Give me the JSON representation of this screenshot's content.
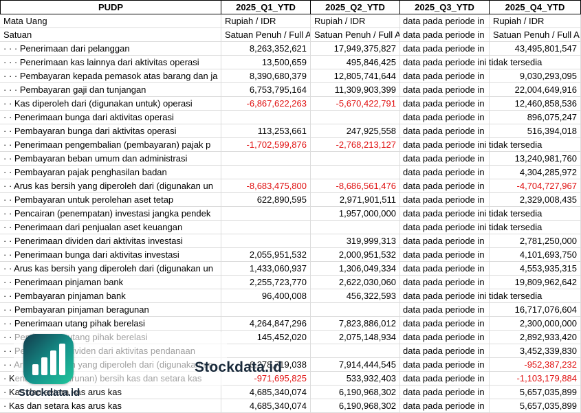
{
  "table": {
    "corner_label": "PUDP",
    "period_headers": [
      "2025_Q1_YTD",
      "2025_Q2_YTD",
      "2025_Q3_YTD",
      "2025_Q4_YTD"
    ],
    "rows": [
      {
        "meta": true,
        "label": "Mata Uang",
        "q1": "Rupiah / IDR",
        "q2": "Rupiah / IDR",
        "q3": "data pada periode in",
        "q4": "Rupiah / IDR"
      },
      {
        "meta": true,
        "label": "Satuan",
        "q1": "Satuan Penuh / Full A",
        "q2": "Satuan Penuh / Full A",
        "q3": "data pada periode in",
        "q4": "Satuan Penuh / Full A"
      },
      {
        "label": "· · · Penerimaan dari pelanggan",
        "q1": "8,263,352,621",
        "q2": "17,949,375,827",
        "q3": "data pada periode in",
        "q4": "43,495,801,547"
      },
      {
        "label": "· · · Penerimaan kas lainnya dari aktivitas operasi",
        "q1": "13,500,659",
        "q2": "495,846,425",
        "q3": "data pada periode ini tidak tersedia",
        "q4": ""
      },
      {
        "label": "· · · Pembayaran kepada pemasok atas barang dan ja",
        "q1": "8,390,680,379",
        "q2": "12,805,741,644",
        "q3": "data pada periode in",
        "q4": "9,030,293,095"
      },
      {
        "label": "· · · Pembayaran gaji dan tunjangan",
        "q1": "6,753,795,164",
        "q2": "11,309,903,399",
        "q3": "data pada periode in",
        "q4": "22,004,649,916"
      },
      {
        "label": "· · Kas diperoleh dari (digunakan untuk) operasi",
        "q1": "-6,867,622,263",
        "q2": "-5,670,422,791",
        "q3": "data pada periode in",
        "q4": "12,460,858,536"
      },
      {
        "label": "· · Penerimaan bunga dari aktivitas operasi",
        "q1": "",
        "q2": "",
        "q3": "data pada periode in",
        "q4": "896,075,247"
      },
      {
        "label": "· · Pembayaran bunga dari aktivitas operasi",
        "q1": "113,253,661",
        "q2": "247,925,558",
        "q3": "data pada periode in",
        "q4": "516,394,018"
      },
      {
        "label": "· · Penerimaan pengembalian (pembayaran) pajak p",
        "q1": "-1,702,599,876",
        "q2": "-2,768,213,127",
        "q3": "data pada periode ini tidak tersedia",
        "q4": ""
      },
      {
        "label": "· · Pembayaran beban umum dan administrasi",
        "q1": "",
        "q2": "",
        "q3": "data pada periode in",
        "q4": "13,240,981,760"
      },
      {
        "label": "· · Pembayaran pajak penghasilan badan",
        "q1": "",
        "q2": "",
        "q3": "data pada periode in",
        "q4": "4,304,285,972"
      },
      {
        "label": "· · Arus kas bersih yang diperoleh dari (digunakan un",
        "q1": "-8,683,475,800",
        "q2": "-8,686,561,476",
        "q3": "data pada periode in",
        "q4": "-4,704,727,967"
      },
      {
        "label": "· · Pembayaran untuk perolehan aset tetap",
        "q1": "622,890,595",
        "q2": "2,971,901,511",
        "q3": "data pada periode in",
        "q4": "2,329,008,435"
      },
      {
        "label": "· · Pencairan (penempatan) investasi jangka pendek",
        "q1": "",
        "q2": "1,957,000,000",
        "q3": "data pada periode ini tidak tersedia",
        "q4": ""
      },
      {
        "label": "· · Penerimaan dari penjualan aset keuangan",
        "q1": "",
        "q2": "",
        "q3": "data pada periode ini tidak tersedia",
        "q4": ""
      },
      {
        "label": "· · Penerimaan dividen dari aktivitas investasi",
        "q1": "",
        "q2": "319,999,313",
        "q3": "data pada periode in",
        "q4": "2,781,250,000"
      },
      {
        "label": "· · Penerimaan bunga dari aktivitas investasi",
        "q1": "2,055,951,532",
        "q2": "2,000,951,532",
        "q3": "data pada periode in",
        "q4": "4,101,693,750"
      },
      {
        "label": "· · Arus kas bersih yang diperoleh dari (digunakan un",
        "q1": "1,433,060,937",
        "q2": "1,306,049,334",
        "q3": "data pada periode in",
        "q4": "4,553,935,315"
      },
      {
        "label": "· · Penerimaan pinjaman bank",
        "q1": "2,255,723,770",
        "q2": "2,622,030,060",
        "q3": "data pada periode in",
        "q4": "19,809,962,642"
      },
      {
        "label": "· · Pembayaran pinjaman bank",
        "q1": "96,400,008",
        "q2": "456,322,593",
        "q3": "data pada periode ini tidak tersedia",
        "q4": ""
      },
      {
        "label": "· · Pembayaran pinjaman beragunan",
        "q1": "",
        "q2": "",
        "q3": "data pada periode in",
        "q4": "16,717,076,604"
      },
      {
        "label": "· · Penerimaan utang pihak berelasi",
        "q1": "4,264,847,296",
        "q2": "7,823,886,012",
        "q3": "data pada periode in",
        "q4": "2,300,000,000"
      },
      {
        "label": "· · Pembayaran utang pihak berelasi",
        "q1": "145,452,020",
        "q2": "2,075,148,934",
        "q3": "data pada periode in",
        "q4": "2,892,933,420"
      },
      {
        "label": "· · Pembayaran dividen dari aktivitas pendanaan",
        "q1": "",
        "q2": "",
        "q3": "data pada periode in",
        "q4": "3,452,339,830"
      },
      {
        "label": "· · Arus kas bersih yang diperoleh dari (digunakan un",
        "q1": "6,278,719,038",
        "q2": "7,914,444,545",
        "q3": "data pada periode in",
        "q4": "-952,387,232"
      },
      {
        "label": "· Kenaikan (penurunan) bersih kas dan setara kas",
        "q1": "-971,695,825",
        "q2": "533,932,403",
        "q3": "data pada periode in",
        "q4": "-1,103,179,884"
      },
      {
        "label": "· Kas dan setara kas arus kas",
        "q1": "4,685,340,074",
        "q2": "6,190,968,302",
        "q3": "data pada periode in",
        "q4": "5,657,035,899"
      },
      {
        "label": "· Kas dan setara kas arus kas",
        "q1": "4,685,340,074",
        "q2": "6,190,968,302",
        "q3": "data pada periode in",
        "q4": "5,657,035,899"
      }
    ]
  },
  "watermark": {
    "brand_text": "Stockdata.id",
    "brand_text_small": "Stockdata.id",
    "icon": "bar-chart-logo-icon",
    "icon_gradient_start": "#123b4c",
    "icon_gradient_end": "#21c79c",
    "brand_text_color": "#18293a"
  },
  "colors": {
    "negative_value": "#e01010",
    "grid_line": "#dcdcdc",
    "header_border": "#000000"
  }
}
